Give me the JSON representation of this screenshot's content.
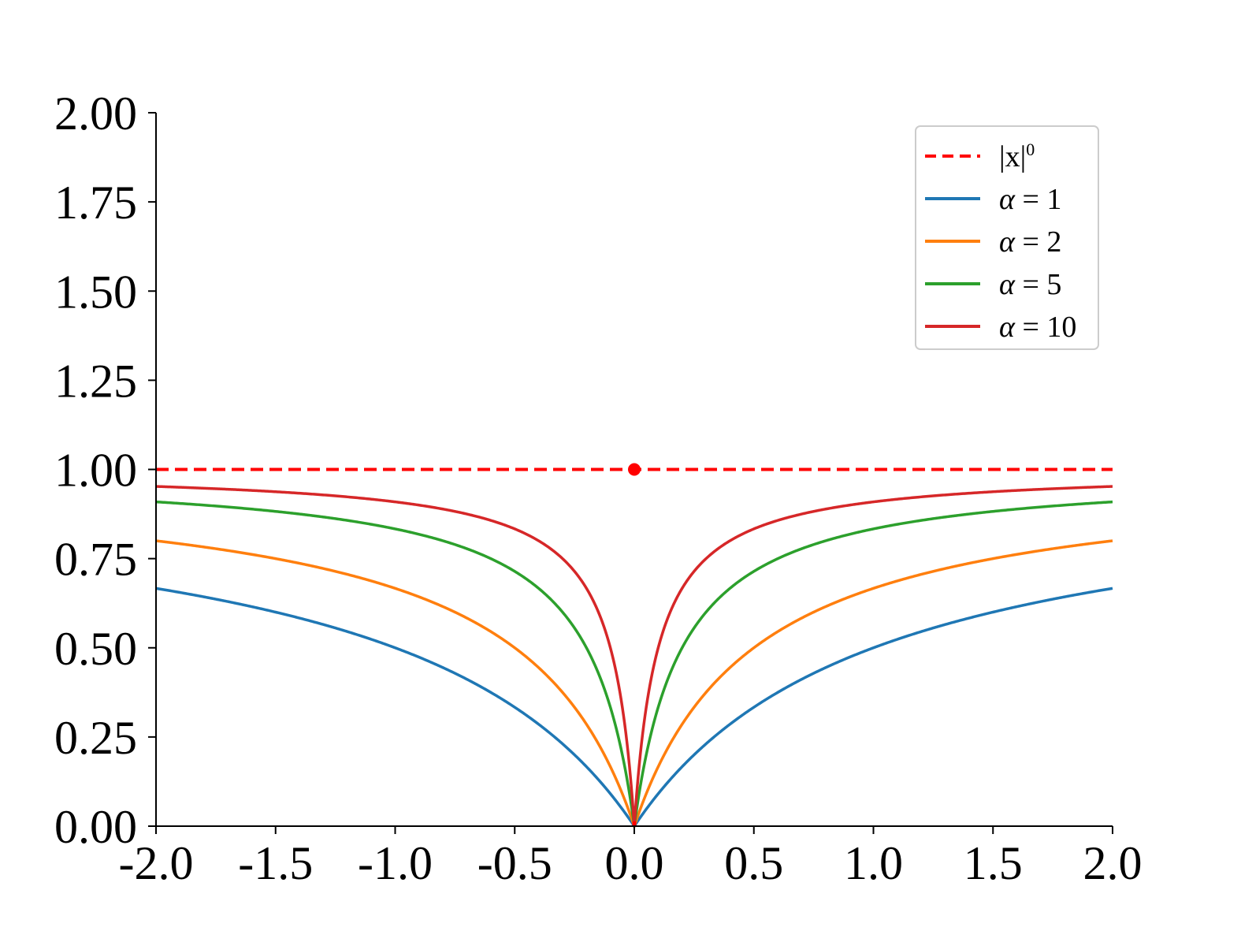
{
  "chart_data": {
    "type": "line",
    "title": "",
    "xlabel": "",
    "ylabel": "",
    "xlim": [
      -2.0,
      2.0
    ],
    "ylim": [
      0.0,
      2.0
    ],
    "grid": false,
    "legend_position": "top-right",
    "x_ticks": [
      "-2.0",
      "-1.5",
      "-1.0",
      "-0.5",
      "0.0",
      "0.5",
      "1.0",
      "1.5",
      "2.0"
    ],
    "y_ticks": [
      "0.00",
      "0.25",
      "0.50",
      "0.75",
      "1.00",
      "1.25",
      "1.50",
      "1.75",
      "2.00"
    ],
    "x_tick_values": [
      -2.0,
      -1.5,
      -1.0,
      -0.5,
      0.0,
      0.5,
      1.0,
      1.5,
      2.0
    ],
    "y_tick_values": [
      0.0,
      0.25,
      0.5,
      0.75,
      1.0,
      1.25,
      1.5,
      1.75,
      2.0
    ],
    "series": [
      {
        "name": "|x|",
        "name_superscript": "0",
        "style": "dashed",
        "color": "#ff0000",
        "x": [
          -2.0,
          2.0
        ],
        "y": [
          1.0,
          1.0
        ],
        "markers": [
          {
            "x": 0.0,
            "y": 1.0,
            "style": "filled-circle"
          }
        ]
      },
      {
        "name": "α = 1",
        "alpha": 1,
        "style": "solid",
        "color": "#1f77b4",
        "x": [
          -2.0,
          -1.5,
          -1.0,
          -0.5,
          -0.25,
          -0.1,
          0.0,
          0.1,
          0.25,
          0.5,
          1.0,
          1.5,
          2.0
        ],
        "y": [
          0.667,
          0.6,
          0.5,
          0.333,
          0.2,
          0.091,
          0.0,
          0.091,
          0.2,
          0.333,
          0.5,
          0.6,
          0.667
        ]
      },
      {
        "name": "α = 2",
        "alpha": 2,
        "style": "solid",
        "color": "#ff7f0e",
        "x": [
          -2.0,
          -1.5,
          -1.0,
          -0.5,
          -0.25,
          -0.1,
          0.0,
          0.1,
          0.25,
          0.5,
          1.0,
          1.5,
          2.0
        ],
        "y": [
          0.8,
          0.75,
          0.667,
          0.5,
          0.333,
          0.167,
          0.0,
          0.167,
          0.333,
          0.5,
          0.667,
          0.75,
          0.8
        ]
      },
      {
        "name": "α = 5",
        "alpha": 5,
        "style": "solid",
        "color": "#2ca02c",
        "x": [
          -2.0,
          -1.5,
          -1.0,
          -0.5,
          -0.25,
          -0.1,
          0.0,
          0.1,
          0.25,
          0.5,
          1.0,
          1.5,
          2.0
        ],
        "y": [
          0.909,
          0.882,
          0.833,
          0.714,
          0.556,
          0.333,
          0.0,
          0.333,
          0.556,
          0.714,
          0.833,
          0.882,
          0.909
        ]
      },
      {
        "name": "α = 10",
        "alpha": 10,
        "style": "solid",
        "color": "#d62728",
        "x": [
          -2.0,
          -1.5,
          -1.0,
          -0.5,
          -0.25,
          -0.1,
          0.0,
          0.1,
          0.25,
          0.5,
          1.0,
          1.5,
          2.0
        ],
        "y": [
          0.952,
          0.938,
          0.909,
          0.833,
          0.714,
          0.5,
          0.0,
          0.5,
          0.714,
          0.833,
          0.909,
          0.938,
          0.952
        ]
      }
    ]
  }
}
